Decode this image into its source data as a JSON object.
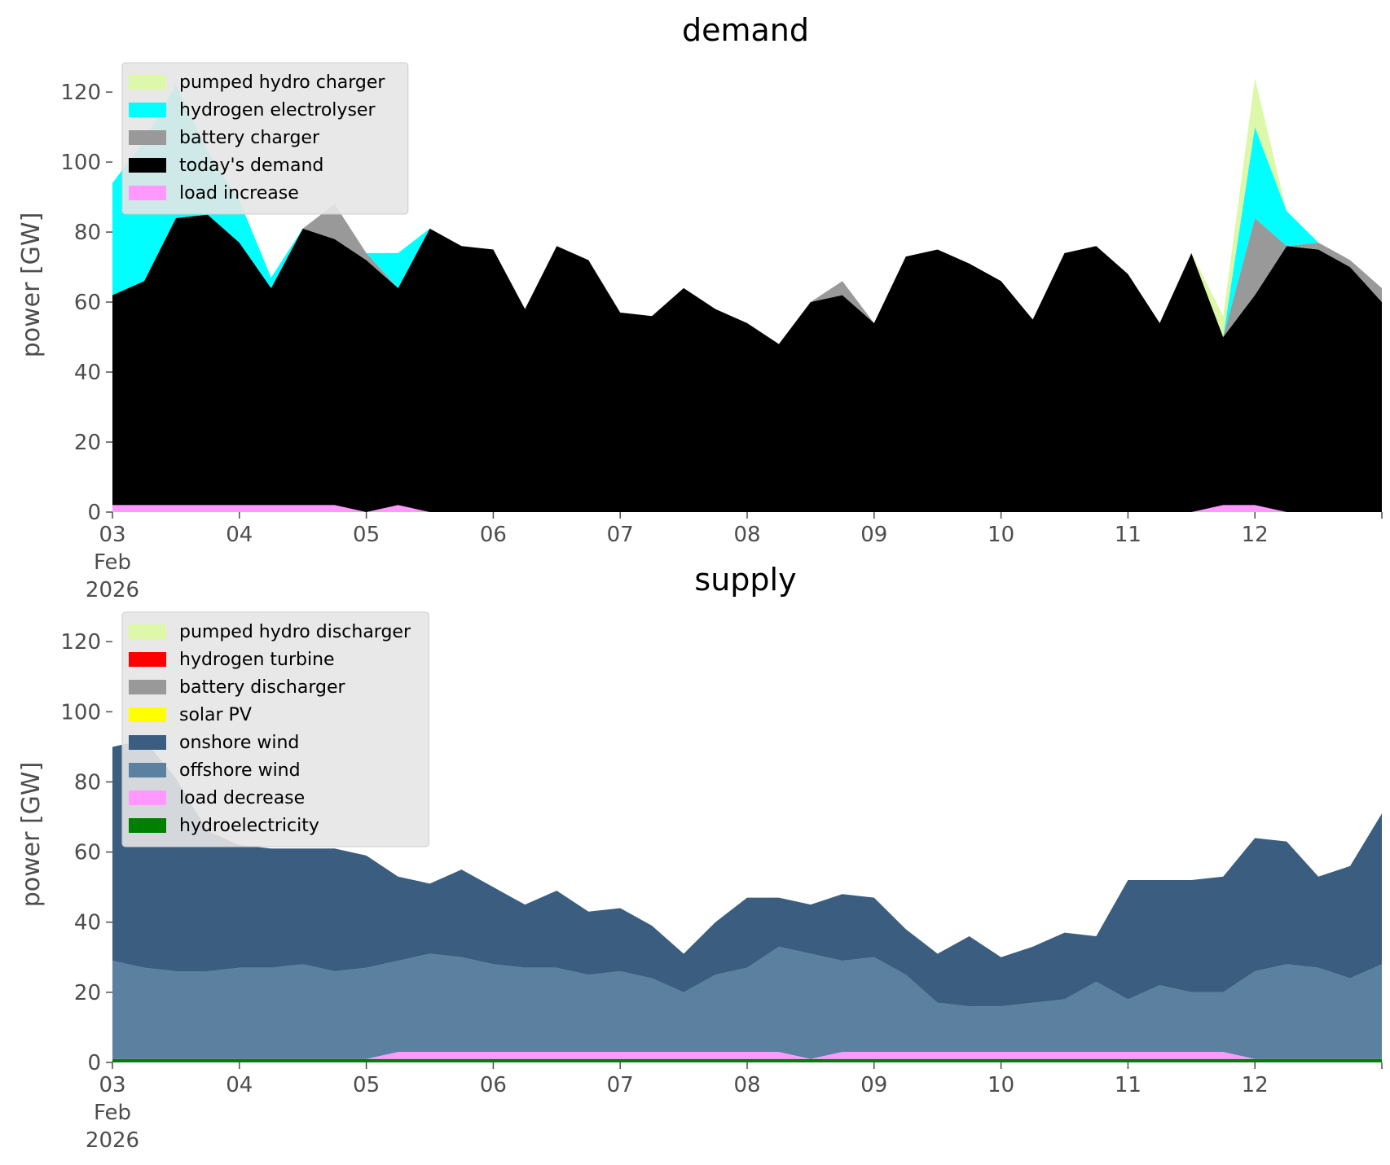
{
  "chart_data": [
    {
      "type": "area",
      "title": "demand",
      "ylabel": "power [GW]",
      "xlabel": "",
      "ylim": [
        0,
        127
      ],
      "xlim": [
        "2026-02-03",
        "2026-02-13"
      ],
      "x_ticks": [
        "03\nFeb\n2026",
        "04",
        "05",
        "06",
        "07",
        "08",
        "09",
        "10",
        "11",
        "12"
      ],
      "y_ticks": [
        "0",
        "20",
        "40",
        "60",
        "80",
        "100",
        "120"
      ],
      "legend_position": "top-left",
      "x": [
        "2026-02-03 00:00",
        "2026-02-03 06:00",
        "2026-02-03 12:00",
        "2026-02-03 18:00",
        "2026-02-04 00:00",
        "2026-02-04 06:00",
        "2026-02-04 12:00",
        "2026-02-04 18:00",
        "2026-02-05 00:00",
        "2026-02-05 06:00",
        "2026-02-05 12:00",
        "2026-02-05 18:00",
        "2026-02-06 00:00",
        "2026-02-06 06:00",
        "2026-02-06 12:00",
        "2026-02-06 18:00",
        "2026-02-07 00:00",
        "2026-02-07 06:00",
        "2026-02-07 12:00",
        "2026-02-07 18:00",
        "2026-02-08 00:00",
        "2026-02-08 06:00",
        "2026-02-08 12:00",
        "2026-02-08 18:00",
        "2026-02-09 00:00",
        "2026-02-09 06:00",
        "2026-02-09 12:00",
        "2026-02-09 18:00",
        "2026-02-10 00:00",
        "2026-02-10 06:00",
        "2026-02-10 12:00",
        "2026-02-10 18:00",
        "2026-02-11 00:00",
        "2026-02-11 06:00",
        "2026-02-11 12:00",
        "2026-02-11 18:00",
        "2026-02-12 00:00",
        "2026-02-12 06:00",
        "2026-02-12 12:00",
        "2026-02-12 18:00",
        "2026-02-13 00:00"
      ],
      "series": [
        {
          "name": "load increase",
          "color": "#ff99ff",
          "values": [
            2,
            2,
            2,
            2,
            2,
            2,
            2,
            2,
            0,
            2,
            0,
            0,
            0,
            0,
            0,
            0,
            0,
            0,
            0,
            0,
            0,
            0,
            0,
            0,
            0,
            0,
            0,
            0,
            0,
            0,
            0,
            0,
            0,
            0,
            0,
            2,
            2,
            0,
            0,
            0,
            0
          ]
        },
        {
          "name": "today's demand",
          "color": "#000000",
          "values": [
            60,
            64,
            82,
            83,
            75,
            62,
            79,
            76,
            72,
            62,
            81,
            76,
            75,
            58,
            76,
            72,
            57,
            56,
            64,
            58,
            54,
            48,
            60,
            62,
            54,
            73,
            75,
            71,
            66,
            55,
            74,
            76,
            68,
            54,
            74,
            48,
            60,
            76,
            75,
            70,
            60
          ]
        },
        {
          "name": "battery charger",
          "color": "#999999",
          "values": [
            0,
            0,
            0,
            0,
            0,
            0,
            0,
            10,
            2,
            0,
            0,
            0,
            0,
            0,
            0,
            0,
            0,
            0,
            0,
            0,
            0,
            0,
            0,
            4,
            0,
            0,
            0,
            0,
            0,
            0,
            0,
            0,
            0,
            0,
            0,
            0,
            22,
            0,
            2,
            2,
            4
          ]
        },
        {
          "name": "hydrogen electrolyser",
          "color": "#00ffff",
          "values": [
            32,
            40,
            38,
            18,
            12,
            3,
            0,
            0,
            0,
            10,
            0,
            0,
            0,
            0,
            0,
            0,
            0,
            0,
            0,
            0,
            0,
            0,
            0,
            0,
            0,
            0,
            0,
            0,
            0,
            0,
            0,
            0,
            0,
            0,
            0,
            0,
            26,
            10,
            0,
            0,
            0
          ]
        },
        {
          "name": "pumped hydro charger",
          "color": "#ddf8a8",
          "values": [
            0,
            0,
            0,
            0,
            0,
            0,
            0,
            0,
            0,
            0,
            0,
            0,
            0,
            0,
            0,
            0,
            0,
            0,
            0,
            0,
            0,
            0,
            0,
            0,
            0,
            0,
            0,
            0,
            0,
            0,
            0,
            0,
            0,
            0,
            0,
            6,
            14,
            0,
            0,
            0,
            0
          ]
        }
      ]
    },
    {
      "type": "area",
      "title": "supply",
      "ylabel": "power [GW]",
      "xlabel": "",
      "ylim": [
        0,
        127
      ],
      "xlim": [
        "2026-02-03",
        "2026-02-13"
      ],
      "x_ticks": [
        "03\nFeb\n2026",
        "04",
        "05",
        "06",
        "07",
        "08",
        "09",
        "10",
        "11",
        "12"
      ],
      "y_ticks": [
        "0",
        "20",
        "40",
        "60",
        "80",
        "100",
        "120"
      ],
      "legend_position": "top-left",
      "x": [
        "2026-02-03 00:00",
        "2026-02-03 06:00",
        "2026-02-03 12:00",
        "2026-02-03 18:00",
        "2026-02-04 00:00",
        "2026-02-04 06:00",
        "2026-02-04 12:00",
        "2026-02-04 18:00",
        "2026-02-05 00:00",
        "2026-02-05 06:00",
        "2026-02-05 12:00",
        "2026-02-05 18:00",
        "2026-02-06 00:00",
        "2026-02-06 06:00",
        "2026-02-06 12:00",
        "2026-02-06 18:00",
        "2026-02-07 00:00",
        "2026-02-07 06:00",
        "2026-02-07 12:00",
        "2026-02-07 18:00",
        "2026-02-08 00:00",
        "2026-02-08 06:00",
        "2026-02-08 12:00",
        "2026-02-08 18:00",
        "2026-02-09 00:00",
        "2026-02-09 06:00",
        "2026-02-09 12:00",
        "2026-02-09 18:00",
        "2026-02-10 00:00",
        "2026-02-10 06:00",
        "2026-02-10 12:00",
        "2026-02-10 18:00",
        "2026-02-11 00:00",
        "2026-02-11 06:00",
        "2026-02-11 12:00",
        "2026-02-11 18:00",
        "2026-02-12 00:00",
        "2026-02-12 06:00",
        "2026-02-12 12:00",
        "2026-02-12 18:00",
        "2026-02-13 00:00"
      ],
      "series": [
        {
          "name": "hydroelectricity",
          "color": "#008000",
          "values": [
            1,
            1,
            1,
            1,
            1,
            1,
            1,
            1,
            1,
            1,
            1,
            1,
            1,
            1,
            1,
            1,
            1,
            1,
            1,
            1,
            1,
            1,
            1,
            1,
            1,
            1,
            1,
            1,
            1,
            1,
            1,
            1,
            1,
            1,
            1,
            1,
            1,
            1,
            1,
            1,
            1
          ]
        },
        {
          "name": "load decrease",
          "color": "#ff99ff",
          "values": [
            0,
            0,
            0,
            0,
            0,
            0,
            0,
            0,
            0,
            2,
            2,
            2,
            2,
            2,
            2,
            2,
            2,
            2,
            2,
            2,
            2,
            2,
            0,
            2,
            2,
            2,
            2,
            2,
            2,
            2,
            2,
            2,
            2,
            2,
            2,
            2,
            0,
            0,
            0,
            0,
            0
          ]
        },
        {
          "name": "offshore wind",
          "color": "#5b80a0",
          "values": [
            28,
            26,
            25,
            25,
            26,
            26,
            27,
            25,
            26,
            26,
            28,
            27,
            25,
            24,
            24,
            22,
            23,
            21,
            17,
            22,
            24,
            30,
            30,
            26,
            27,
            22,
            14,
            13,
            13,
            14,
            15,
            20,
            15,
            19,
            17,
            17,
            25,
            27,
            26,
            23,
            27
          ]
        },
        {
          "name": "onshore wind",
          "color": "#3b5e80",
          "values": [
            61,
            65,
            55,
            40,
            35,
            34,
            33,
            35,
            32,
            24,
            20,
            25,
            22,
            18,
            22,
            18,
            18,
            15,
            11,
            15,
            20,
            14,
            14,
            19,
            17,
            13,
            14,
            20,
            14,
            16,
            19,
            13,
            34,
            30,
            32,
            33,
            38,
            35,
            26,
            32,
            43
          ]
        },
        {
          "name": "solar PV",
          "color": "#ffff00",
          "values": [
            0,
            0,
            0,
            0,
            0,
            0,
            0,
            0,
            0,
            0,
            0,
            0,
            0,
            0,
            0,
            0,
            0,
            0,
            0,
            0,
            0,
            0,
            0,
            0,
            0,
            0,
            0,
            0,
            0,
            0,
            0,
            0,
            0,
            0,
            0,
            0,
            0,
            0,
            0,
            0,
            0
          ]
        },
        {
          "name": "battery discharger",
          "color": "#999999",
          "values": [
            0,
            0,
            0,
            0,
            0,
            0,
            0,
            0,
            0,
            0,
            0,
            0,
            0,
            0,
            0,
            0,
            0,
            0,
            0,
            0,
            0,
            0,
            0,
            0,
            0,
            0,
            0,
            0,
            0,
            0,
            0,
            0,
            0,
            0,
            0,
            0,
            0,
            0,
            0,
            0,
            0
          ]
        },
        {
          "name": "hydrogen turbine",
          "color": "#ff0000",
          "values": [
            0,
            0,
            0,
            0,
            0,
            0,
            0,
            0,
            0,
            0,
            0,
            0,
            0,
            0,
            0,
            0,
            0,
            0,
            0,
            0,
            0,
            0,
            0,
            0,
            0,
            0,
            0,
            0,
            0,
            0,
            0,
            0,
            0,
            0,
            0,
            0,
            0,
            0,
            0,
            0,
            0
          ]
        },
        {
          "name": "pumped hydro discharger",
          "color": "#ddf8a8",
          "values": [
            0,
            0,
            0,
            0,
            0,
            0,
            0,
            0,
            0,
            0,
            0,
            0,
            0,
            0,
            0,
            0,
            0,
            0,
            0,
            0,
            0,
            0,
            0,
            0,
            0,
            0,
            0,
            0,
            0,
            0,
            0,
            0,
            0,
            0,
            0,
            0,
            0,
            0,
            0,
            0,
            0
          ]
        }
      ]
    }
  ]
}
